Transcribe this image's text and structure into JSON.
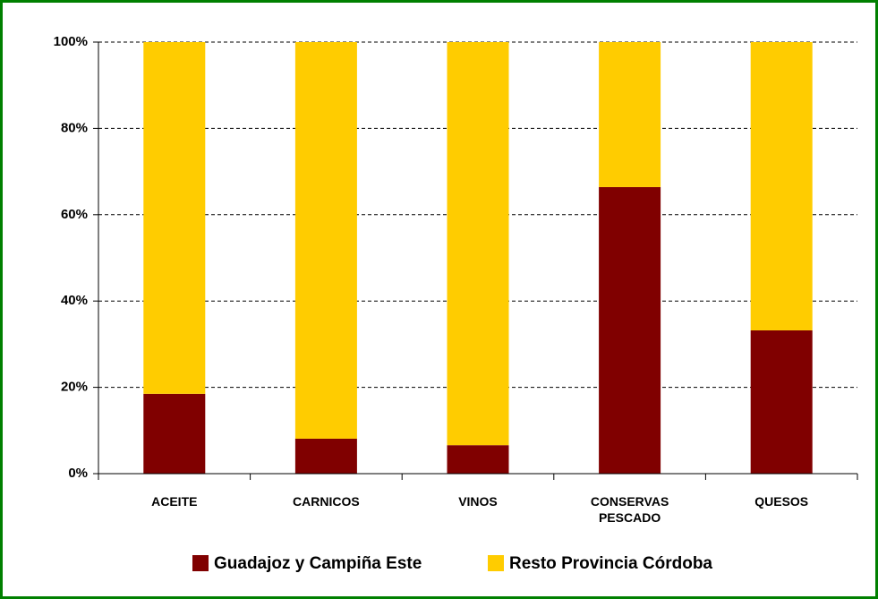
{
  "chart_data": {
    "type": "stacked_bar",
    "categories": [
      "ACEITE",
      "CARNICOS",
      "VINOS",
      "CONSERVAS PESCADO",
      "QUESOS"
    ],
    "series": [
      {
        "name": "Guadajoz y Campiña Este",
        "color": "#800000",
        "values": [
          18.5,
          8.1,
          6.6,
          66.4,
          33.2
        ]
      },
      {
        "name": "Resto Provincia Córdoba",
        "color": "#ffcc00",
        "values": [
          81.5,
          91.9,
          93.4,
          33.6,
          66.8
        ]
      }
    ],
    "ylim": [
      0,
      100
    ],
    "yticks": [
      {
        "value": 0,
        "label": "0%"
      },
      {
        "value": 20,
        "label": "20%"
      },
      {
        "value": 40,
        "label": "40%"
      },
      {
        "value": 60,
        "label": "60%"
      },
      {
        "value": 80,
        "label": "80%"
      },
      {
        "value": 100,
        "label": "100%"
      }
    ],
    "grid": true,
    "legend": "bottom"
  }
}
